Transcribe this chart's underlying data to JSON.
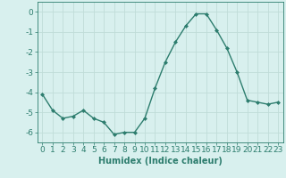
{
  "x": [
    0,
    1,
    2,
    3,
    4,
    5,
    6,
    7,
    8,
    9,
    10,
    11,
    12,
    13,
    14,
    15,
    16,
    17,
    18,
    19,
    20,
    21,
    22,
    23
  ],
  "y": [
    -4.1,
    -4.9,
    -5.3,
    -5.2,
    -4.9,
    -5.3,
    -5.5,
    -6.1,
    -6.0,
    -6.0,
    -5.3,
    -3.8,
    -2.5,
    -1.5,
    -0.7,
    -0.1,
    -0.1,
    -0.9,
    -1.8,
    -3.0,
    -4.4,
    -4.5,
    -4.6,
    -4.5
  ],
  "line_color": "#2d7d6e",
  "marker": "D",
  "markersize": 2.0,
  "linewidth": 1.0,
  "background_color": "#d8f0ee",
  "grid_color": "#c0dcd8",
  "tick_color": "#2d7d6e",
  "label_color": "#2d7d6e",
  "xlabel": "Humidex (Indice chaleur)",
  "ylim": [
    -6.5,
    0.5
  ],
  "yticks": [
    0,
    -1,
    -2,
    -3,
    -4,
    -5,
    -6
  ],
  "xticks": [
    0,
    1,
    2,
    3,
    4,
    5,
    6,
    7,
    8,
    9,
    10,
    11,
    12,
    13,
    14,
    15,
    16,
    17,
    18,
    19,
    20,
    21,
    22,
    23
  ],
  "xlabel_fontsize": 7,
  "tick_fontsize": 6.5
}
